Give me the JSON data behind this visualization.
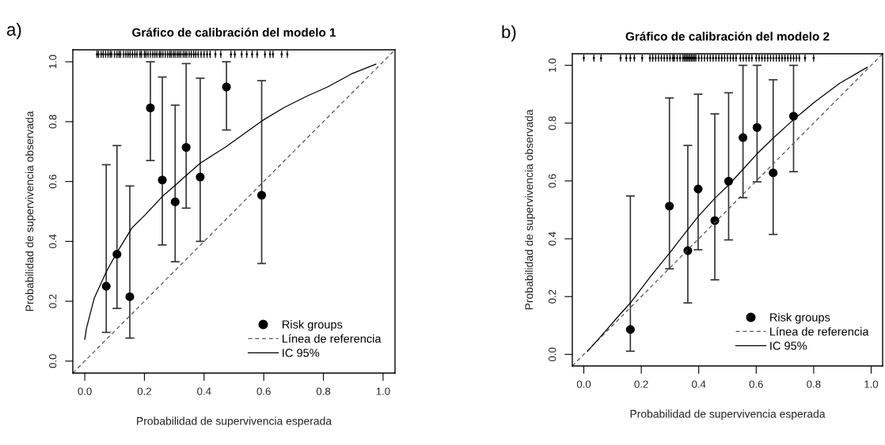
{
  "chart_data": [
    {
      "type": "scatter",
      "title": "Gráfico de calibración del modelo 1",
      "xlabel": "Probabilidad de supervivencia esperada",
      "ylabel": "Probabilidad de supervivencia observada",
      "annotations": [
        "a)"
      ],
      "legend": "bottom right",
      "grid": false,
      "xlim": [
        -0.04,
        1.04
      ],
      "ylim": [
        -0.04,
        1.04
      ],
      "xticks": [
        {
          "value": 0,
          "label": "0.0"
        },
        {
          "value": 0.2,
          "label": "0.2"
        },
        {
          "value": 0.4,
          "label": "0.4"
        },
        {
          "value": 0.6,
          "label": "0.6"
        },
        {
          "value": 0.8,
          "label": "0.8"
        },
        {
          "value": 1,
          "label": "1.0"
        }
      ],
      "yticks": [
        {
          "value": 0,
          "label": "0.0"
        },
        {
          "value": 0.2,
          "label": "0.2"
        },
        {
          "value": 0.4,
          "label": "0.4"
        },
        {
          "value": 0.6,
          "label": "0.6"
        },
        {
          "value": 0.8,
          "label": "0.8"
        },
        {
          "value": 1,
          "label": "1.0"
        }
      ],
      "series": [
        {
          "name": "Risk groups",
          "marker": "circle",
          "color": "#000000",
          "x": [
            0.072,
            0.108,
            0.151,
            0.22,
            0.26,
            0.303,
            0.34,
            0.387,
            0.475,
            0.593
          ],
          "values": [
            0.25,
            0.357,
            0.215,
            0.846,
            0.605,
            0.532,
            0.714,
            0.615,
            0.916,
            0.554
          ],
          "errors": [
            [
              0.096,
              0.656
            ],
            [
              0.176,
              0.72
            ],
            [
              0.077,
              0.585
            ],
            [
              0.67,
              1.0
            ],
            [
              0.388,
              0.949
            ],
            [
              0.332,
              0.855
            ],
            [
              0.511,
              0.994
            ],
            [
              0.4,
              0.945
            ],
            [
              0.772,
              1.0
            ],
            [
              0.326,
              0.937
            ]
          ]
        },
        {
          "name": "Línea de referencia",
          "type": "line",
          "line_style": "dashed",
          "marker": "none",
          "color": "#555555",
          "x": [
            -0.04,
            1.04
          ],
          "values": [
            -0.04,
            1.04
          ]
        },
        {
          "name": "IC 95%",
          "type": "line",
          "line_style": "solid",
          "marker": "none",
          "color": "#000000",
          "x": [
            0,
            0.006,
            0.032,
            0.072,
            0.108,
            0.159,
            0.203,
            0.26,
            0.303,
            0.34,
            0.387,
            0.475,
            0.593,
            0.666,
            0.744,
            0.814,
            0.893,
            0.976
          ],
          "values": [
            0.073,
            0.111,
            0.211,
            0.298,
            0.363,
            0.446,
            0.489,
            0.55,
            0.587,
            0.62,
            0.661,
            0.717,
            0.802,
            0.846,
            0.885,
            0.916,
            0.959,
            0.992
          ]
        },
        {
          "type": "scatter",
          "marker": "circle",
          "color": "#000000",
          "errors": [
            0.012,
            0.012,
            0.012,
            0.012,
            0.012,
            0.012,
            0.012,
            0.012,
            0.012,
            0.012,
            0.012,
            0.012,
            0.012,
            0.012,
            0.012,
            0.012,
            0.012,
            0.012,
            0.012,
            0.012,
            0.012,
            0.012,
            0.012,
            0.012,
            0.012,
            0.012,
            0.012,
            0.012,
            0.012,
            0.012,
            0.012,
            0.012,
            0.012,
            0.012,
            0.012,
            0.012,
            0.012,
            0.012,
            0.012,
            0.012,
            0.012,
            0.012,
            0.012,
            0.012,
            0.012,
            0.012,
            0.012,
            0.012,
            0.012,
            0.012,
            0.012,
            0.012,
            0.012,
            0.012,
            0.012,
            0.012,
            0.012,
            0.012,
            0.012,
            0.012,
            0.012,
            0.012,
            0.012,
            0.012,
            0.012
          ],
          "x": [
            0.041,
            0.046,
            0.055,
            0.062,
            0.07,
            0.078,
            0.085,
            0.09,
            0.1,
            0.108,
            0.115,
            0.12,
            0.13,
            0.138,
            0.145,
            0.152,
            0.16,
            0.168,
            0.175,
            0.185,
            0.19,
            0.2,
            0.205,
            0.212,
            0.22,
            0.228,
            0.235,
            0.242,
            0.25,
            0.255,
            0.262,
            0.27,
            0.278,
            0.285,
            0.29,
            0.297,
            0.303,
            0.31,
            0.316,
            0.322,
            0.33,
            0.336,
            0.342,
            0.35,
            0.357,
            0.365,
            0.372,
            0.38,
            0.39,
            0.4,
            0.41,
            0.42,
            0.438,
            0.456,
            0.49,
            0.503,
            0.526,
            0.543,
            0.561,
            0.578,
            0.604,
            0.621,
            0.631,
            0.66,
            0.679
          ],
          "values": [
            1.025,
            1.025,
            1.025,
            1.025,
            1.025,
            1.025,
            1.025,
            1.025,
            1.025,
            1.025,
            1.025,
            1.025,
            1.025,
            1.025,
            1.025,
            1.025,
            1.025,
            1.025,
            1.025,
            1.025,
            1.025,
            1.025,
            1.025,
            1.025,
            1.025,
            1.025,
            1.025,
            1.025,
            1.025,
            1.025,
            1.025,
            1.025,
            1.025,
            1.025,
            1.025,
            1.025,
            1.025,
            1.025,
            1.025,
            1.025,
            1.025,
            1.025,
            1.025,
            1.025,
            1.025,
            1.025,
            1.025,
            1.025,
            1.025,
            1.025,
            1.025,
            1.025,
            1.025,
            1.025,
            1.025,
            1.025,
            1.025,
            1.025,
            1.025,
            1.025,
            1.025,
            1.025,
            1.025,
            1.025,
            1.025
          ]
        }
      ]
    },
    {
      "type": "scatter",
      "title": "Gráfico de calibración del modelo 2",
      "xlabel": "Probabilidad de supervivencia esperada",
      "ylabel": "Probabilidad de supervivencia observada",
      "annotations": [
        "b)"
      ],
      "legend": "bottom right",
      "grid": false,
      "xlim": [
        -0.04,
        1.04
      ],
      "ylim": [
        -0.04,
        1.04
      ],
      "xticks": [
        {
          "value": 0,
          "label": "0.0"
        },
        {
          "value": 0.2,
          "label": "0.2"
        },
        {
          "value": 0.4,
          "label": "0.4"
        },
        {
          "value": 0.6,
          "label": "0.6"
        },
        {
          "value": 0.8,
          "label": "0.8"
        },
        {
          "value": 1,
          "label": "1.0"
        }
      ],
      "yticks": [
        {
          "value": 0,
          "label": "0.0"
        },
        {
          "value": 0.2,
          "label": "0.2"
        },
        {
          "value": 0.4,
          "label": "0.4"
        },
        {
          "value": 0.6,
          "label": "0.6"
        },
        {
          "value": 0.8,
          "label": "0.8"
        },
        {
          "value": 1,
          "label": "1.0"
        }
      ],
      "series": [
        {
          "name": "Risk groups",
          "marker": "circle",
          "color": "#000000",
          "x": [
            0.162,
            0.298,
            0.362,
            0.398,
            0.456,
            0.504,
            0.554,
            0.603,
            0.659,
            0.73
          ],
          "values": [
            0.086,
            0.513,
            0.359,
            0.572,
            0.463,
            0.599,
            0.75,
            0.785,
            0.628,
            0.824
          ],
          "errors": [
            [
              0.011,
              0.548
            ],
            [
              0.296,
              0.887
            ],
            [
              0.178,
              0.723
            ],
            [
              0.362,
              0.9
            ],
            [
              0.258,
              0.832
            ],
            [
              0.396,
              0.905
            ],
            [
              0.542,
              1.0
            ],
            [
              0.597,
              1.0
            ],
            [
              0.415,
              0.95
            ],
            [
              0.632,
              1.0
            ]
          ]
        },
        {
          "name": "Línea de referencia",
          "type": "line",
          "line_style": "dashed",
          "marker": "none",
          "color": "#555555",
          "x": [
            -0.04,
            1.04
          ],
          "values": [
            -0.04,
            1.04
          ]
        },
        {
          "name": "IC 95%",
          "type": "line",
          "line_style": "solid",
          "marker": "none",
          "color": "#000000",
          "x": [
            0.013,
            0.058,
            0.121,
            0.162,
            0.239,
            0.298,
            0.362,
            0.398,
            0.456,
            0.504,
            0.554,
            0.603,
            0.659,
            0.73,
            0.801,
            0.891,
            0.986
          ],
          "values": [
            0.011,
            0.061,
            0.133,
            0.178,
            0.278,
            0.35,
            0.432,
            0.477,
            0.54,
            0.586,
            0.64,
            0.694,
            0.748,
            0.812,
            0.871,
            0.938,
            0.993
          ]
        },
        {
          "type": "scatter",
          "marker": "circle",
          "color": "#000000",
          "errors": [
            0.012,
            0.012,
            0.012,
            0.012,
            0.012,
            0.012,
            0.012,
            0.012,
            0.012,
            0.012,
            0.012,
            0.012,
            0.012,
            0.012,
            0.012,
            0.012,
            0.012,
            0.012,
            0.012,
            0.012,
            0.012,
            0.012,
            0.012,
            0.012,
            0.012,
            0.012,
            0.012,
            0.012,
            0.012,
            0.012,
            0.012,
            0.012,
            0.012,
            0.012,
            0.012,
            0.012,
            0.012,
            0.012,
            0.012,
            0.012,
            0.012,
            0.012,
            0.012,
            0.012,
            0.012,
            0.012,
            0.012,
            0.012,
            0.012,
            0.012,
            0.012,
            0.012,
            0.012,
            0.012,
            0.012,
            0.012,
            0.012,
            0.012,
            0.012,
            0.012,
            0.012,
            0.012,
            0.012,
            0.012,
            0.012,
            0.012,
            0.012
          ],
          "x": [
            0.0,
            0.035,
            0.06,
            0.128,
            0.148,
            0.162,
            0.176,
            0.203,
            0.23,
            0.24,
            0.25,
            0.26,
            0.27,
            0.28,
            0.29,
            0.3,
            0.31,
            0.315,
            0.325,
            0.335,
            0.345,
            0.35,
            0.355,
            0.36,
            0.365,
            0.37,
            0.375,
            0.38,
            0.385,
            0.39,
            0.4,
            0.41,
            0.42,
            0.43,
            0.44,
            0.45,
            0.46,
            0.47,
            0.48,
            0.49,
            0.5,
            0.51,
            0.52,
            0.53,
            0.545,
            0.555,
            0.565,
            0.575,
            0.585,
            0.6,
            0.61,
            0.62,
            0.63,
            0.64,
            0.65,
            0.66,
            0.67,
            0.68,
            0.69,
            0.7,
            0.71,
            0.72,
            0.73,
            0.74,
            0.75,
            0.77,
            0.8
          ],
          "values": [
            1.025,
            1.025,
            1.025,
            1.025,
            1.025,
            1.025,
            1.025,
            1.025,
            1.025,
            1.025,
            1.025,
            1.025,
            1.025,
            1.025,
            1.025,
            1.025,
            1.025,
            1.025,
            1.025,
            1.025,
            1.025,
            1.025,
            1.025,
            1.025,
            1.025,
            1.025,
            1.025,
            1.025,
            1.025,
            1.025,
            1.025,
            1.025,
            1.025,
            1.025,
            1.025,
            1.025,
            1.025,
            1.025,
            1.025,
            1.025,
            1.025,
            1.025,
            1.025,
            1.025,
            1.025,
            1.025,
            1.025,
            1.025,
            1.025,
            1.025,
            1.025,
            1.025,
            1.025,
            1.025,
            1.025,
            1.025,
            1.025,
            1.025,
            1.025,
            1.025,
            1.025,
            1.025,
            1.025,
            1.025,
            1.025,
            1.025,
            1.025
          ]
        }
      ]
    }
  ]
}
